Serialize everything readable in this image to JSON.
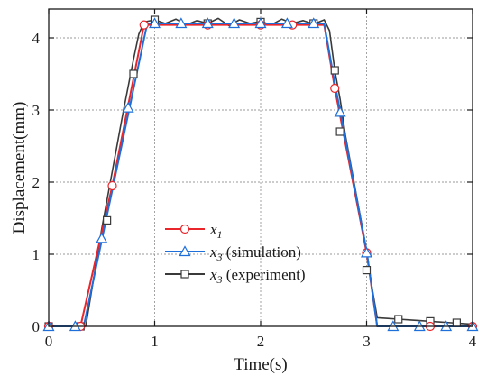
{
  "chart_data": {
    "type": "line",
    "title": "",
    "xlabel": "Time(s)",
    "ylabel": "Displacement(mm)",
    "xlim": [
      0,
      4
    ],
    "ylim": [
      0,
      4.4
    ],
    "xticks": [
      0,
      1,
      2,
      3,
      4
    ],
    "yticks": [
      0,
      1,
      2,
      3,
      4
    ],
    "xtick_labels": [
      "0",
      "1",
      "2",
      "3",
      "4"
    ],
    "ytick_labels": [
      "0",
      "1",
      "2",
      "3",
      "4"
    ],
    "grid": true,
    "grid_style": "dotted",
    "legend_position": "left-center",
    "series": [
      {
        "name": "x1",
        "label_main": "x",
        "label_sub": "1",
        "label_rest": "",
        "color": "#e8262b",
        "marker": "circle",
        "x": [
          0,
          0.3,
          0.6,
          0.9,
          2.6,
          2.7,
          3.0,
          3.1,
          4.0
        ],
        "y": [
          0,
          0,
          1.95,
          4.18,
          4.18,
          3.3,
          1.02,
          0,
          0
        ],
        "marker_x": [
          0,
          0.3,
          0.6,
          0.9,
          1.5,
          2.0,
          2.3,
          2.7,
          3.0,
          3.6,
          4.0
        ],
        "marker_y": [
          0,
          0,
          1.95,
          4.18,
          4.18,
          4.18,
          4.18,
          3.3,
          1.02,
          0,
          0
        ]
      },
      {
        "name": "x3 (simulation)",
        "label_main": "x",
        "label_sub": "3",
        "label_rest": " (simulation)",
        "color": "#1e6fd9",
        "marker": "triangle",
        "x": [
          0,
          0.33,
          0.93,
          2.6,
          2.69,
          3.0,
          3.1,
          4.0
        ],
        "y": [
          0,
          0,
          4.2,
          4.2,
          3.45,
          1.05,
          0,
          0
        ],
        "marker_x": [
          0,
          0.25,
          0.5,
          0.75,
          1.0,
          1.25,
          1.5,
          1.75,
          2.0,
          2.25,
          2.5,
          2.75,
          3.0,
          3.25,
          3.5,
          3.75,
          4.0
        ],
        "marker_y": [
          0,
          0,
          1.22,
          3.03,
          4.2,
          4.2,
          4.2,
          4.2,
          4.2,
          4.2,
          4.2,
          2.97,
          1.02,
          0,
          0,
          0,
          0
        ]
      },
      {
        "name": "x3 (experiment)",
        "label_main": "x",
        "label_sub": "3",
        "label_rest": " (experiment)",
        "color": "#3a3a3a",
        "marker": "square",
        "x": [
          0,
          0.35,
          0.4,
          0.5,
          0.6,
          0.7,
          0.8,
          0.85,
          0.9,
          1.0,
          1.1,
          1.2,
          1.3,
          1.4,
          1.5,
          1.6,
          1.7,
          1.8,
          1.9,
          2.0,
          2.1,
          2.2,
          2.3,
          2.4,
          2.5,
          2.6,
          2.65,
          2.7,
          2.75,
          2.8,
          2.9,
          3.0,
          3.05,
          3.1,
          3.2,
          3.3,
          3.4,
          3.5,
          3.6,
          3.7,
          3.8,
          3.9,
          4.0
        ],
        "y": [
          0,
          0,
          0.45,
          1.35,
          2.15,
          2.95,
          3.7,
          4.05,
          4.22,
          4.25,
          4.2,
          4.26,
          4.18,
          4.24,
          4.2,
          4.27,
          4.17,
          4.25,
          4.2,
          4.23,
          4.18,
          4.26,
          4.2,
          4.24,
          4.19,
          4.25,
          4.1,
          3.55,
          3.15,
          2.65,
          1.85,
          1.05,
          0.55,
          0.12,
          0.11,
          0.1,
          0.09,
          0.08,
          0.07,
          0.06,
          0.05,
          0.04,
          0.03
        ],
        "marker_x": [
          0,
          0.3,
          0.55,
          0.8,
          1.0,
          1.5,
          2.0,
          2.5,
          2.7,
          2.75,
          3.0,
          3.3,
          3.6,
          3.85
        ],
        "marker_y": [
          0,
          0,
          1.47,
          3.5,
          4.25,
          4.2,
          4.22,
          4.2,
          3.55,
          2.7,
          0.78,
          0.1,
          0.07,
          0.05
        ]
      }
    ]
  }
}
